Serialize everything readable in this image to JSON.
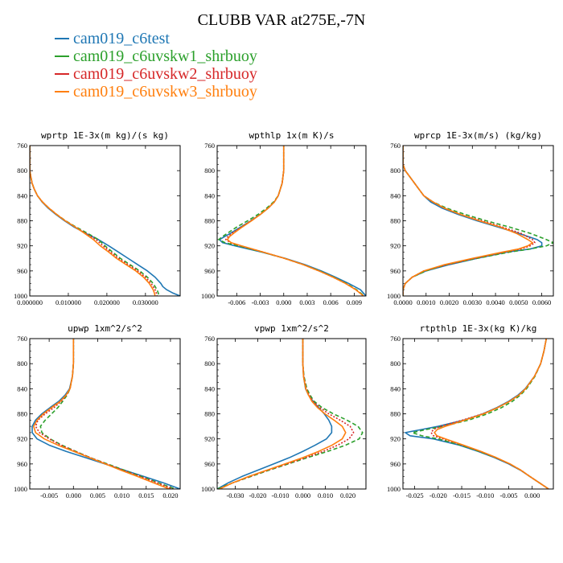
{
  "figure": {
    "title": "CLUBB VAR at275E,-7N"
  },
  "legend": [
    {
      "name": "cam019_c6test",
      "color": "#1f77b4",
      "dash": "solid"
    },
    {
      "name": "cam019_c6uvskw1_shrbuoy",
      "color": "#2ca02c",
      "dash": "dashed"
    },
    {
      "name": "cam019_c6uvskw2_shrbuoy",
      "color": "#d62728",
      "dash": "dotted"
    },
    {
      "name": "cam019_c6uvskw3_shrbuoy",
      "color": "#ff7f0e",
      "dash": "solid"
    }
  ],
  "chart_data": [
    {
      "type": "line",
      "title": "wprtp  1E-3x(m kg)/(s kg)",
      "xlim": [
        0,
        0.039
      ],
      "ylim": [
        760,
        1000
      ],
      "y_inverted": true,
      "xticks": [
        0.0,
        0.01,
        0.02,
        0.03
      ],
      "xtick_labels": [
        "0.000000",
        "0.010000",
        "0.020000",
        "0.030000"
      ],
      "yticks": [
        760,
        800,
        840,
        880,
        920,
        960,
        1000
      ],
      "y": [
        760,
        790,
        800,
        810,
        820,
        830,
        840,
        850,
        860,
        870,
        880,
        890,
        900,
        910,
        920,
        930,
        940,
        950,
        960,
        970,
        980,
        985,
        990,
        995,
        1000
      ],
      "series": [
        {
          "values": [
            0,
            0,
            0,
            0.0003,
            0.0006,
            0.0012,
            0.002,
            0.0032,
            0.0048,
            0.0068,
            0.009,
            0.0115,
            0.0145,
            0.0178,
            0.0205,
            0.023,
            0.0255,
            0.028,
            0.0305,
            0.0325,
            0.034,
            0.0345,
            0.0355,
            0.037,
            0.039
          ]
        },
        {
          "values": [
            0,
            0,
            0,
            0.0003,
            0.0006,
            0.0012,
            0.002,
            0.0033,
            0.005,
            0.007,
            0.0093,
            0.012,
            0.015,
            0.0178,
            0.0195,
            0.0215,
            0.0235,
            0.026,
            0.0285,
            0.0305,
            0.032,
            0.0325,
            0.033,
            0.0333,
            0.0335
          ]
        },
        {
          "values": [
            0,
            0,
            0,
            0.0003,
            0.0006,
            0.0012,
            0.002,
            0.0033,
            0.005,
            0.007,
            0.0092,
            0.0118,
            0.0145,
            0.0172,
            0.019,
            0.021,
            0.023,
            0.0255,
            0.028,
            0.03,
            0.0315,
            0.032,
            0.0325,
            0.0328,
            0.033
          ]
        },
        {
          "values": [
            0,
            0,
            0,
            0.0003,
            0.0006,
            0.0012,
            0.002,
            0.0033,
            0.005,
            0.007,
            0.0092,
            0.0118,
            0.0142,
            0.0165,
            0.0183,
            0.0205,
            0.0225,
            0.025,
            0.0275,
            0.0295,
            0.031,
            0.0315,
            0.032,
            0.0323,
            0.0325
          ]
        }
      ]
    },
    {
      "type": "line",
      "title": "wpthlp  1x(m K)/s",
      "xlim": [
        -0.0085,
        0.0105
      ],
      "ylim": [
        760,
        1000
      ],
      "y_inverted": true,
      "xticks": [
        -0.006,
        -0.003,
        0.0,
        0.003,
        0.006,
        0.009
      ],
      "xtick_labels": [
        "-0.006",
        "-0.003",
        "0.000",
        "0.003",
        "0.006",
        "0.009"
      ],
      "yticks": [
        760,
        800,
        840,
        880,
        920,
        960,
        1000
      ],
      "y": [
        760,
        800,
        820,
        840,
        850,
        860,
        870,
        880,
        890,
        900,
        905,
        910,
        915,
        920,
        930,
        940,
        950,
        960,
        970,
        980,
        990,
        1000
      ],
      "series": [
        {
          "values": [
            0,
            0,
            -0.0002,
            -0.0007,
            -0.0012,
            -0.002,
            -0.003,
            -0.0042,
            -0.0055,
            -0.0068,
            -0.0075,
            -0.0082,
            -0.0078,
            -0.0062,
            -0.0028,
            0.0002,
            0.0027,
            0.0048,
            0.0066,
            0.0083,
            0.0098,
            0.0105
          ]
        },
        {
          "values": [
            0,
            0,
            -0.0002,
            -0.0007,
            -0.0013,
            -0.0022,
            -0.0033,
            -0.0046,
            -0.006,
            -0.0072,
            -0.0078,
            -0.0083,
            -0.0075,
            -0.0058,
            -0.0027,
            0.0001,
            0.0025,
            0.0046,
            0.0064,
            0.008,
            0.0093,
            0.0103
          ]
        },
        {
          "values": [
            0,
            0,
            -0.0002,
            -0.0007,
            -0.0012,
            -0.002,
            -0.003,
            -0.0042,
            -0.0054,
            -0.0066,
            -0.0071,
            -0.0074,
            -0.0068,
            -0.0055,
            -0.0026,
            0.0001,
            0.0025,
            0.0045,
            0.0063,
            0.0079,
            0.0092,
            0.0102
          ]
        },
        {
          "values": [
            0,
            0,
            -0.0002,
            -0.0007,
            -0.0012,
            -0.002,
            -0.003,
            -0.0041,
            -0.0053,
            -0.0064,
            -0.0069,
            -0.0072,
            -0.0067,
            -0.0054,
            -0.0026,
            0.0001,
            0.0025,
            0.0045,
            0.0063,
            0.0079,
            0.0092,
            0.0102
          ]
        }
      ]
    },
    {
      "type": "line",
      "title": "wprcp  1E-3x(m/s) (kg/kg)",
      "xlim": [
        0,
        0.0065
      ],
      "ylim": [
        760,
        1000
      ],
      "y_inverted": true,
      "xticks": [
        0.0,
        0.001,
        0.002,
        0.003,
        0.004,
        0.005,
        0.006
      ],
      "xtick_labels": [
        "0.0000",
        "0.0010",
        "0.0020",
        "0.0030",
        "0.0040",
        "0.0050",
        "0.0060"
      ],
      "yticks": [
        760,
        800,
        840,
        880,
        920,
        960,
        1000
      ],
      "y": [
        760,
        790,
        800,
        810,
        820,
        830,
        840,
        850,
        860,
        870,
        880,
        890,
        900,
        910,
        915,
        920,
        925,
        930,
        940,
        950,
        960,
        970,
        980,
        990,
        1000
      ],
      "series": [
        {
          "values": [
            0,
            0,
            0.0001,
            0.0003,
            0.0005,
            0.0007,
            0.0009,
            0.0012,
            0.0017,
            0.0024,
            0.0032,
            0.0041,
            0.005,
            0.0058,
            0.006,
            0.006,
            0.0055,
            0.0045,
            0.0032,
            0.002,
            0.001,
            0.0004,
            0.0001,
            0,
            0
          ]
        },
        {
          "values": [
            0,
            0,
            0.0001,
            0.0003,
            0.0005,
            0.0007,
            0.0009,
            0.0013,
            0.0019,
            0.0027,
            0.0036,
            0.0046,
            0.0055,
            0.0062,
            0.0065,
            0.0062,
            0.0055,
            0.0046,
            0.0032,
            0.0019,
            0.001,
            0.0004,
            0.0001,
            0,
            0
          ]
        },
        {
          "values": [
            0,
            0,
            0.0001,
            0.0003,
            0.0005,
            0.0007,
            0.0009,
            0.0013,
            0.0018,
            0.0025,
            0.0034,
            0.0043,
            0.0051,
            0.0056,
            0.0057,
            0.0055,
            0.0051,
            0.0044,
            0.0031,
            0.0019,
            0.0009,
            0.0004,
            0.0001,
            0,
            0
          ]
        },
        {
          "values": [
            0,
            0,
            0.0001,
            0.0003,
            0.0005,
            0.0007,
            0.0009,
            0.0013,
            0.0018,
            0.0025,
            0.0033,
            0.0042,
            0.0049,
            0.0054,
            0.0056,
            0.0054,
            0.005,
            0.0043,
            0.003,
            0.0018,
            0.0009,
            0.0004,
            0.0001,
            0,
            0
          ]
        }
      ]
    },
    {
      "type": "line",
      "title": "upwp  1xm^2/s^2",
      "xlim": [
        -0.009,
        0.022
      ],
      "ylim": [
        760,
        1000
      ],
      "y_inverted": true,
      "xticks": [
        -0.005,
        0.0,
        0.005,
        0.01,
        0.015,
        0.02
      ],
      "xtick_labels": [
        "-0.005",
        "0.000",
        "0.005",
        "0.010",
        "0.015",
        "0.020"
      ],
      "yticks": [
        760,
        800,
        840,
        880,
        920,
        960,
        1000
      ],
      "y": [
        760,
        800,
        820,
        840,
        850,
        860,
        870,
        880,
        890,
        900,
        910,
        920,
        930,
        940,
        950,
        960,
        970,
        980,
        990,
        1000
      ],
      "series": [
        {
          "values": [
            0,
            0,
            -0.0002,
            -0.0008,
            -0.0017,
            -0.003,
            -0.0048,
            -0.0065,
            -0.0078,
            -0.0085,
            -0.0085,
            -0.0075,
            -0.005,
            -0.0015,
            0.0025,
            0.0065,
            0.0105,
            0.0145,
            0.0185,
            0.022
          ]
        },
        {
          "values": [
            0,
            0,
            -0.0002,
            -0.0007,
            -0.0013,
            -0.0022,
            -0.0032,
            -0.0045,
            -0.0058,
            -0.0068,
            -0.0065,
            -0.0048,
            -0.0024,
            0.0005,
            0.0035,
            0.007,
            0.0105,
            0.014,
            0.0175,
            0.021
          ]
        },
        {
          "values": [
            0,
            0,
            -0.0002,
            -0.0007,
            -0.0014,
            -0.0025,
            -0.004,
            -0.0058,
            -0.0073,
            -0.0078,
            -0.007,
            -0.005,
            -0.0026,
            0.0004,
            0.0035,
            0.0068,
            0.0102,
            0.0138,
            0.0172,
            0.0205
          ]
        },
        {
          "values": [
            0,
            0,
            -0.0002,
            -0.0007,
            -0.0015,
            -0.0027,
            -0.0045,
            -0.0062,
            -0.0075,
            -0.0082,
            -0.0078,
            -0.006,
            -0.0032,
            0.0001,
            0.0033,
            0.0066,
            0.0098,
            0.0132,
            0.0165,
            0.0198
          ]
        }
      ]
    },
    {
      "type": "line",
      "title": "vpwp  1xm^2/s^2",
      "xlim": [
        -0.038,
        0.028
      ],
      "ylim": [
        760,
        1000
      ],
      "y_inverted": true,
      "xticks": [
        -0.03,
        -0.02,
        -0.01,
        0.0,
        0.01,
        0.02
      ],
      "xtick_labels": [
        "-0.030",
        "-0.020",
        "-0.010",
        "0.000",
        "0.010",
        "0.020"
      ],
      "yticks": [
        760,
        800,
        840,
        880,
        920,
        960,
        1000
      ],
      "y": [
        760,
        800,
        820,
        840,
        850,
        860,
        870,
        880,
        890,
        900,
        910,
        920,
        930,
        940,
        950,
        960,
        970,
        980,
        990,
        1000
      ],
      "series": [
        {
          "values": [
            0,
            0,
            0.0003,
            0.0012,
            0.0025,
            0.0045,
            0.007,
            0.0095,
            0.0115,
            0.0128,
            0.0128,
            0.0105,
            0.0055,
            0,
            -0.006,
            -0.013,
            -0.02,
            -0.027,
            -0.033,
            -0.038
          ]
        },
        {
          "values": [
            0,
            0,
            0.0005,
            0.0018,
            0.0032,
            0.005,
            0.0085,
            0.0135,
            0.0195,
            0.0245,
            0.0265,
            0.025,
            0.019,
            0.011,
            0.002,
            -0.0065,
            -0.015,
            -0.023,
            -0.031,
            -0.038
          ]
        },
        {
          "values": [
            0,
            0,
            0.0004,
            0.0015,
            0.0028,
            0.0045,
            0.0075,
            0.0115,
            0.0165,
            0.021,
            0.0225,
            0.0205,
            0.0155,
            0.009,
            0.0012,
            -0.007,
            -0.0155,
            -0.0235,
            -0.031,
            -0.037
          ]
        },
        {
          "values": [
            0,
            0,
            0.0003,
            0.0013,
            0.0025,
            0.004,
            0.0065,
            0.0098,
            0.0138,
            0.0175,
            0.019,
            0.0175,
            0.013,
            0.007,
            0,
            -0.008,
            -0.016,
            -0.024,
            -0.031,
            -0.037
          ]
        }
      ]
    },
    {
      "type": "line",
      "title": "rtpthlp  1E-3x(kg K)/kg",
      "xlim": [
        -0.0275,
        0.0045
      ],
      "ylim": [
        760,
        1000
      ],
      "y_inverted": true,
      "xticks": [
        -0.025,
        -0.02,
        -0.015,
        -0.01,
        -0.005,
        0.0
      ],
      "xtick_labels": [
        "-0.025",
        "-0.020",
        "-0.015",
        "-0.010",
        "-0.005",
        "0.000"
      ],
      "yticks": [
        760,
        800,
        840,
        880,
        920,
        960,
        1000
      ],
      "y": [
        760,
        780,
        800,
        820,
        840,
        850,
        860,
        870,
        880,
        890,
        900,
        905,
        910,
        915,
        920,
        930,
        940,
        950,
        960,
        970,
        980,
        990,
        1000
      ],
      "series": [
        {
          "values": [
            0.003,
            0.0025,
            0.0018,
            0.0005,
            -0.0015,
            -0.003,
            -0.005,
            -0.0075,
            -0.0105,
            -0.0145,
            -0.02,
            -0.0235,
            -0.027,
            -0.026,
            -0.021,
            -0.0155,
            -0.0115,
            -0.008,
            -0.005,
            -0.0025,
            -0.0005,
            0.0015,
            0.0035
          ]
        },
        {
          "values": [
            0.003,
            0.0025,
            0.0018,
            0.0006,
            -0.0012,
            -0.0025,
            -0.0042,
            -0.0065,
            -0.0095,
            -0.0135,
            -0.019,
            -0.0225,
            -0.0255,
            -0.0235,
            -0.02,
            -0.0152,
            -0.0113,
            -0.0078,
            -0.0048,
            -0.0024,
            -0.0005,
            0.0015,
            0.0035
          ]
        },
        {
          "values": [
            0.003,
            0.0025,
            0.0018,
            0.0005,
            -0.0014,
            -0.0028,
            -0.0048,
            -0.0073,
            -0.0105,
            -0.0148,
            -0.0195,
            -0.021,
            -0.0215,
            -0.021,
            -0.019,
            -0.0148,
            -0.011,
            -0.0077,
            -0.0048,
            -0.0024,
            -0.0005,
            0.0015,
            0.0035
          ]
        },
        {
          "values": [
            0.003,
            0.0025,
            0.0018,
            0.0005,
            -0.0014,
            -0.0028,
            -0.0048,
            -0.0073,
            -0.0103,
            -0.0143,
            -0.0185,
            -0.0202,
            -0.0208,
            -0.0203,
            -0.0185,
            -0.0146,
            -0.0109,
            -0.0076,
            -0.0047,
            -0.0024,
            -0.0005,
            0.0015,
            0.0035
          ]
        }
      ]
    }
  ]
}
